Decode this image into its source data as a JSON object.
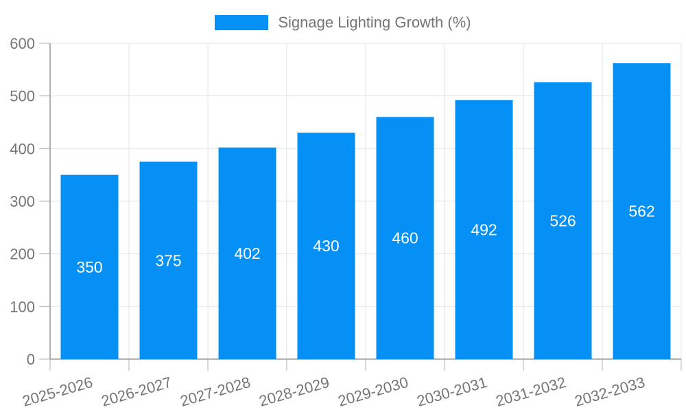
{
  "chart_data": {
    "type": "bar",
    "title": "Signage Lighting Growth (%)",
    "categories": [
      "2025-2026",
      "2026-2027",
      "2027-2028",
      "2028-2029",
      "2029-2030",
      "2030-2031",
      "2031-2032",
      "2032-2033"
    ],
    "values": [
      350,
      375,
      402,
      430,
      460,
      492,
      526,
      562
    ],
    "xlabel": "",
    "ylabel": "",
    "ylim": [
      0,
      600
    ],
    "yticks": [
      0,
      100,
      200,
      300,
      400,
      500,
      600
    ],
    "grid": true,
    "legend_position": "top-center",
    "legend_label": "Signage Lighting Growth (%)",
    "bar_color": "#0590f5",
    "value_label_color": "#ffffff",
    "grid_color": "#e6e6e6",
    "axis_color": "#b0b0b0",
    "tick_label_color": "#757575",
    "x_label_rotation_deg": -16
  }
}
